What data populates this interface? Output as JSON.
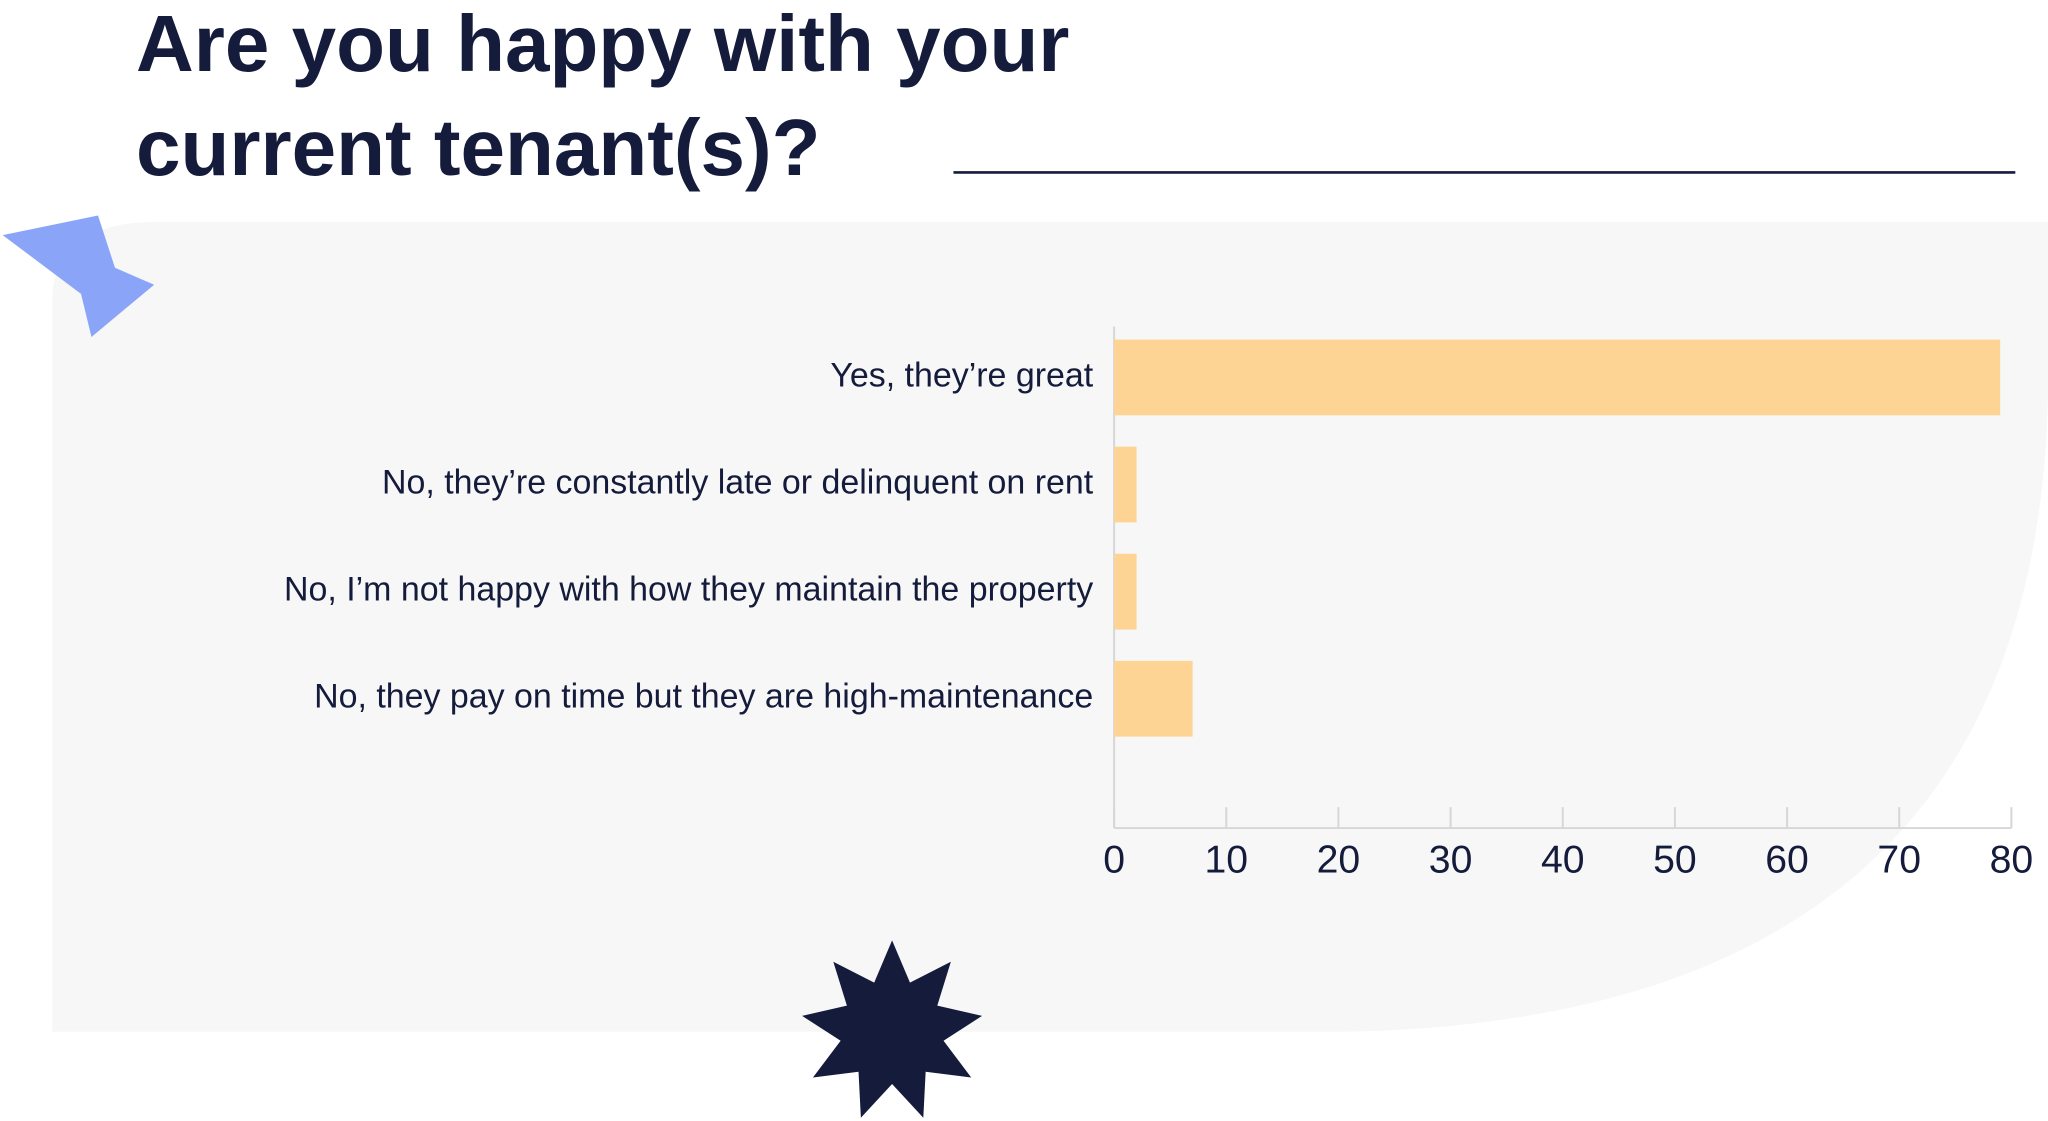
{
  "chart_data": {
    "type": "bar",
    "orientation": "horizontal",
    "title": "Are you happy with your current tenant(s)?",
    "categories": [
      "Yes, they’re great",
      "No, they’re constantly late or delinquent on rent",
      "No, I’m not happy with how they maintain the property",
      "No, they pay on time but they are high-maintenance"
    ],
    "values": [
      79,
      2,
      2,
      7
    ],
    "color": "#fdd494",
    "xlim": [
      0,
      80
    ],
    "xticks": [
      0,
      10,
      20,
      30,
      40,
      50,
      60,
      70,
      80
    ]
  }
}
